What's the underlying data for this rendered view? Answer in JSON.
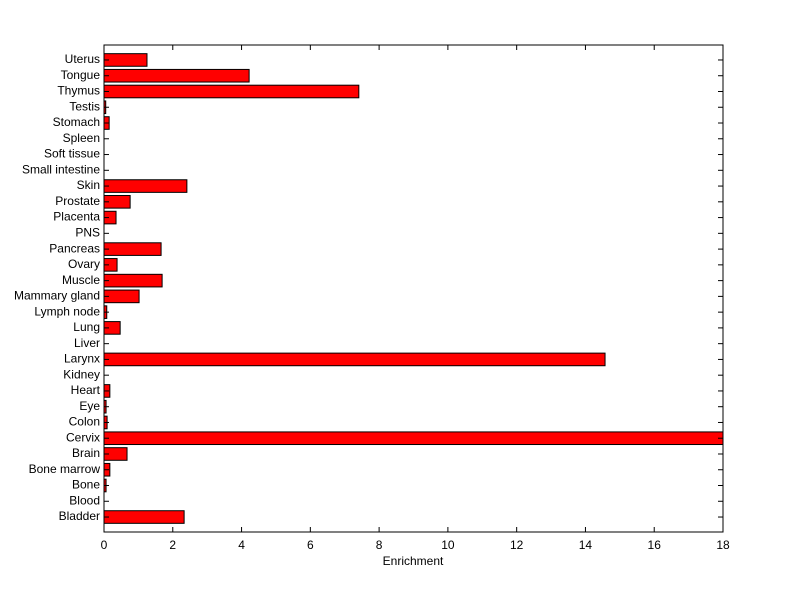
{
  "chart_data": {
    "type": "barh",
    "x_label": "Enrichment",
    "categories": [
      "Bladder",
      "Blood",
      "Bone",
      "Bone marrow",
      "Brain",
      "Cervix",
      "Colon",
      "Eye",
      "Heart",
      "Kidney",
      "Larynx",
      "Liver",
      "Lung",
      "Lymph node",
      "Mammary gland",
      "Muscle",
      "Ovary",
      "Pancreas",
      "PNS",
      "Placenta",
      "Prostate",
      "Skin",
      "Small intestine",
      "Soft tissue",
      "Spleen",
      "Stomach",
      "Testis",
      "Thymus",
      "Tongue",
      "Uterus"
    ],
    "values": [
      2.33,
      0,
      0.06,
      0.17,
      0.67,
      18,
      0.09,
      0.06,
      0.17,
      0,
      14.57,
      0,
      0.47,
      0.08,
      1.02,
      1.69,
      0.38,
      1.66,
      0,
      0.35,
      0.76,
      2.41,
      0,
      0,
      0,
      0.15,
      0.05,
      7.41,
      4.22,
      1.25
    ],
    "color": "#ff0000",
    "xlim": [
      0,
      18
    ],
    "xticks": [
      0,
      2,
      4,
      6,
      8,
      10,
      12,
      14,
      16,
      18
    ]
  }
}
